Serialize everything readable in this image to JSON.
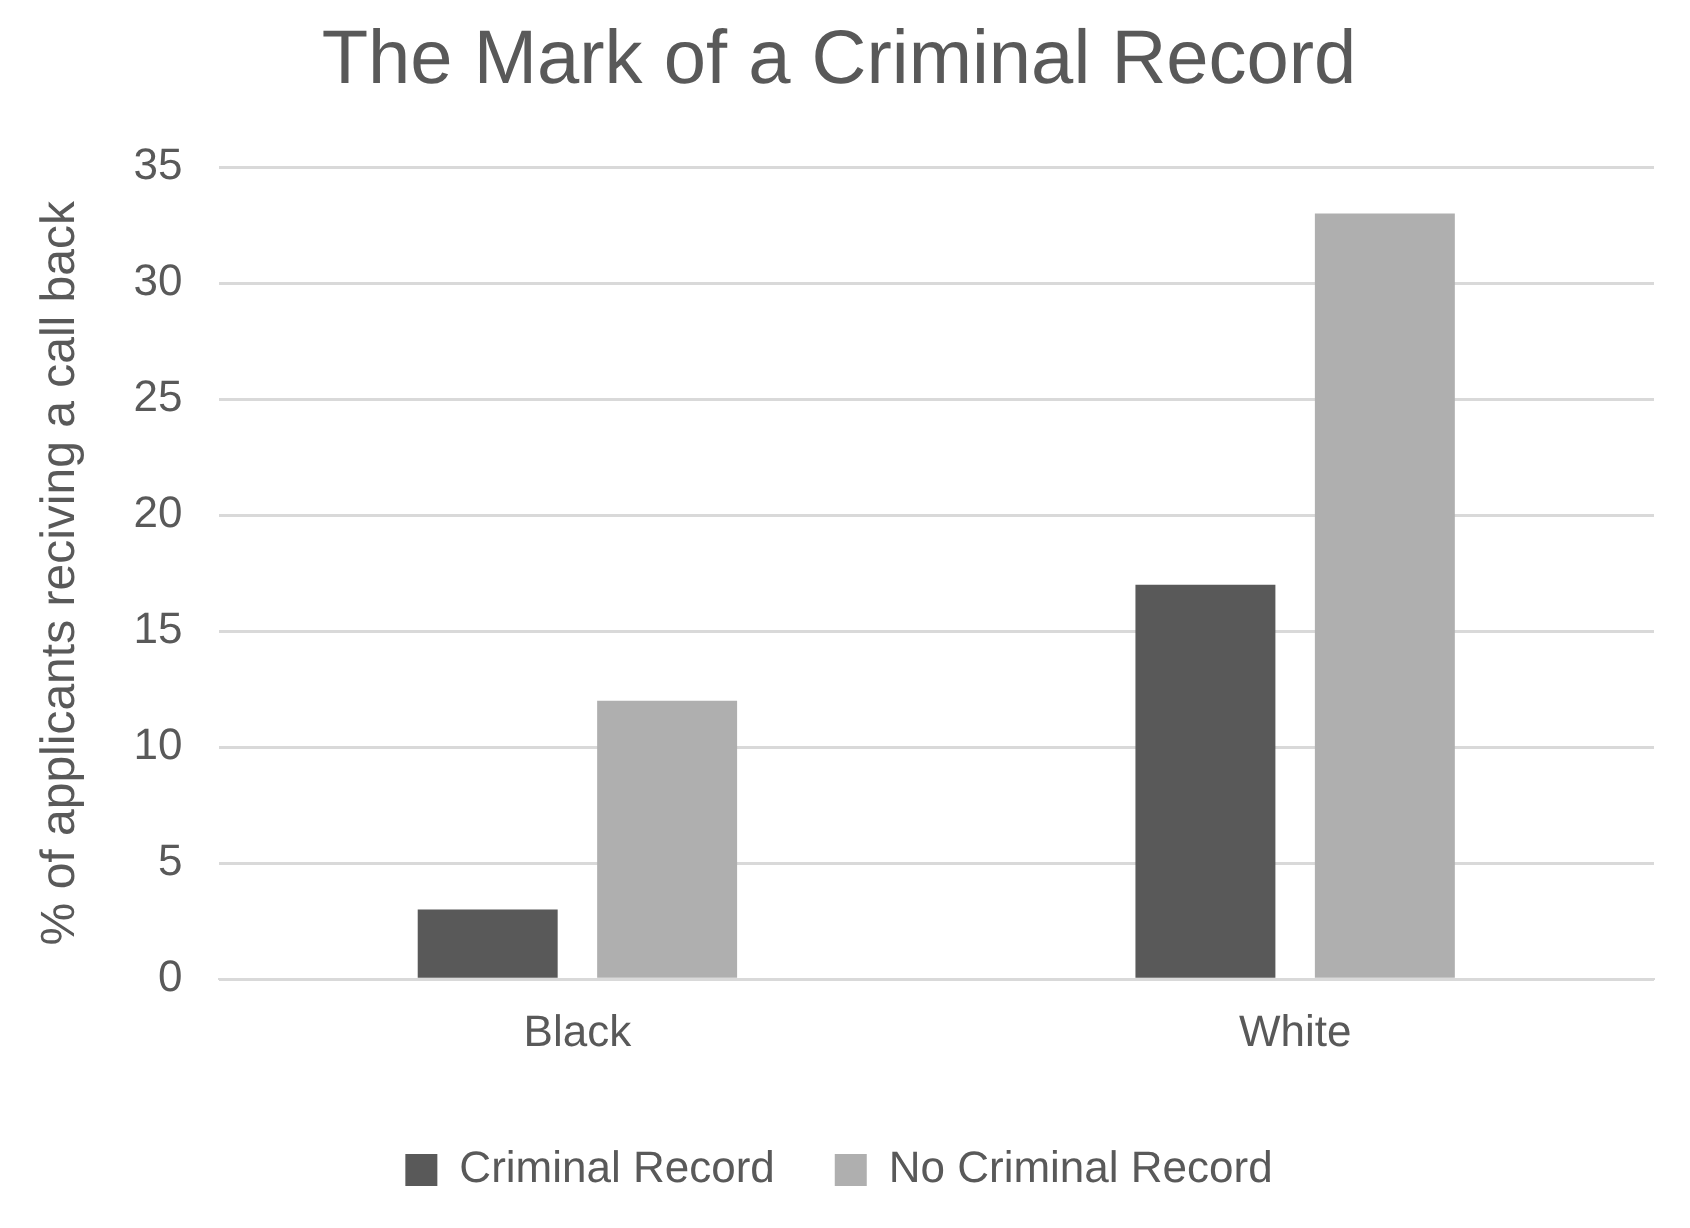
{
  "chart_data": {
    "type": "bar",
    "title": "The Mark of a Criminal Record",
    "ylabel": "% of applicants reciving a call back",
    "categories": [
      "Black",
      "White"
    ],
    "series": [
      {
        "name": "Criminal Record",
        "color": "#595959",
        "values": [
          3,
          17
        ]
      },
      {
        "name": "No Criminal Record",
        "color": "#afafaf",
        "values": [
          12,
          33
        ]
      }
    ],
    "ylim": [
      0,
      35
    ],
    "yticks": [
      0,
      5,
      10,
      15,
      20,
      25,
      30,
      35
    ],
    "grid": "y",
    "legend": "bottom"
  }
}
